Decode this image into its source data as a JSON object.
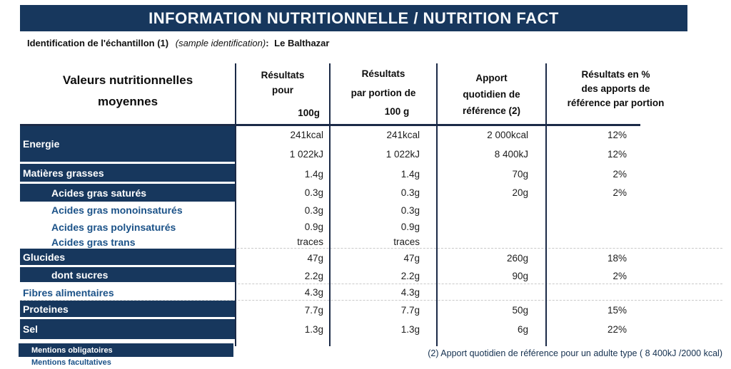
{
  "title": "INFORMATION NUTRITIONNELLE / NUTRITION FACT",
  "identification": {
    "label_fr": "Identification de l'échantillon (1)",
    "label_en_italic": "(sample identification)",
    "colon": ":",
    "value": "Le Balthazar"
  },
  "colors": {
    "navy": "#17375d",
    "facultative_blue": "#1b5288",
    "line_dark": "#1b2a47",
    "dash_gray": "#c9c9c9"
  },
  "table": {
    "header": {
      "values_col": [
        "Valeurs nutritionnelles",
        "moyennes"
      ],
      "per_100g": [
        "Résultats",
        "pour",
        "100g"
      ],
      "per_portion": [
        "Résultats",
        "par portion de",
        "100 g"
      ],
      "daily_reference": [
        "Apport",
        "quotidien de",
        "référence (2)"
      ],
      "percent_reference": [
        "Résultats en %",
        "des apports de",
        "référence par portion"
      ]
    },
    "rows": [
      {
        "label": "Energie",
        "style": "mandatory",
        "indent": false,
        "values": {
          "per_100g": [
            "241kcal",
            "1 022kJ"
          ],
          "per_portion": [
            "241kcal",
            "1 022kJ"
          ],
          "daily_reference": [
            "2 000kcal",
            "8 400kJ"
          ],
          "percent_reference": [
            "12%",
            "12%"
          ]
        }
      },
      {
        "label": "Matières grasses",
        "style": "mandatory",
        "indent": false,
        "values": {
          "per_100g": [
            "1.4g"
          ],
          "per_portion": [
            "1.4g"
          ],
          "daily_reference": [
            "70g"
          ],
          "percent_reference": [
            "2%"
          ]
        }
      },
      {
        "label": "Acides gras saturés",
        "style": "mandatory",
        "indent": true,
        "values": {
          "per_100g": [
            "0.3g"
          ],
          "per_portion": [
            "0.3g"
          ],
          "daily_reference": [
            "20g"
          ],
          "percent_reference": [
            "2%"
          ]
        }
      },
      {
        "label": "Acides gras monoinsaturés",
        "style": "facultative",
        "indent": true,
        "values": {
          "per_100g": [
            "0.3g"
          ],
          "per_portion": [
            "0.3g"
          ],
          "daily_reference": [],
          "percent_reference": []
        }
      },
      {
        "label": "Acides gras polyinsaturés",
        "style": "facultative",
        "indent": true,
        "values": {
          "per_100g": [
            "0.9g"
          ],
          "per_portion": [
            "0.9g"
          ],
          "daily_reference": [],
          "percent_reference": []
        }
      },
      {
        "label": "Acides gras trans",
        "style": "facultative",
        "indent": true,
        "values": {
          "per_100g": [
            "traces"
          ],
          "per_portion": [
            "traces"
          ],
          "daily_reference": [],
          "percent_reference": []
        }
      },
      {
        "label": "Glucides",
        "style": "mandatory",
        "indent": false,
        "values": {
          "per_100g": [
            "47g"
          ],
          "per_portion": [
            "47g"
          ],
          "daily_reference": [
            "260g"
          ],
          "percent_reference": [
            "18%"
          ]
        }
      },
      {
        "label": "dont sucres",
        "style": "mandatory",
        "indent": true,
        "values": {
          "per_100g": [
            "2.2g"
          ],
          "per_portion": [
            "2.2g"
          ],
          "daily_reference": [
            "90g"
          ],
          "percent_reference": [
            "2%"
          ]
        }
      },
      {
        "label": "Fibres alimentaires",
        "style": "facultative",
        "indent": false,
        "values": {
          "per_100g": [
            "4.3g"
          ],
          "per_portion": [
            "4.3g"
          ],
          "daily_reference": [],
          "percent_reference": []
        }
      },
      {
        "label": "Proteines",
        "style": "mandatory",
        "indent": false,
        "values": {
          "per_100g": [
            "7.7g"
          ],
          "per_portion": [
            "7.7g"
          ],
          "daily_reference": [
            "50g"
          ],
          "percent_reference": [
            "15%"
          ]
        }
      },
      {
        "label": "Sel",
        "style": "mandatory",
        "indent": false,
        "values": {
          "per_100g": [
            "1.3g"
          ],
          "per_portion": [
            "1.3g"
          ],
          "daily_reference": [
            "6g"
          ],
          "percent_reference": [
            "22%"
          ]
        }
      }
    ],
    "legend": {
      "mandatory": "Mentions obligatoires",
      "facultative": "Mentions facultatives"
    },
    "footnote": "(2) Apport quotidien de référence pour un adulte type ( 8 400kJ /2000 kcal)"
  }
}
